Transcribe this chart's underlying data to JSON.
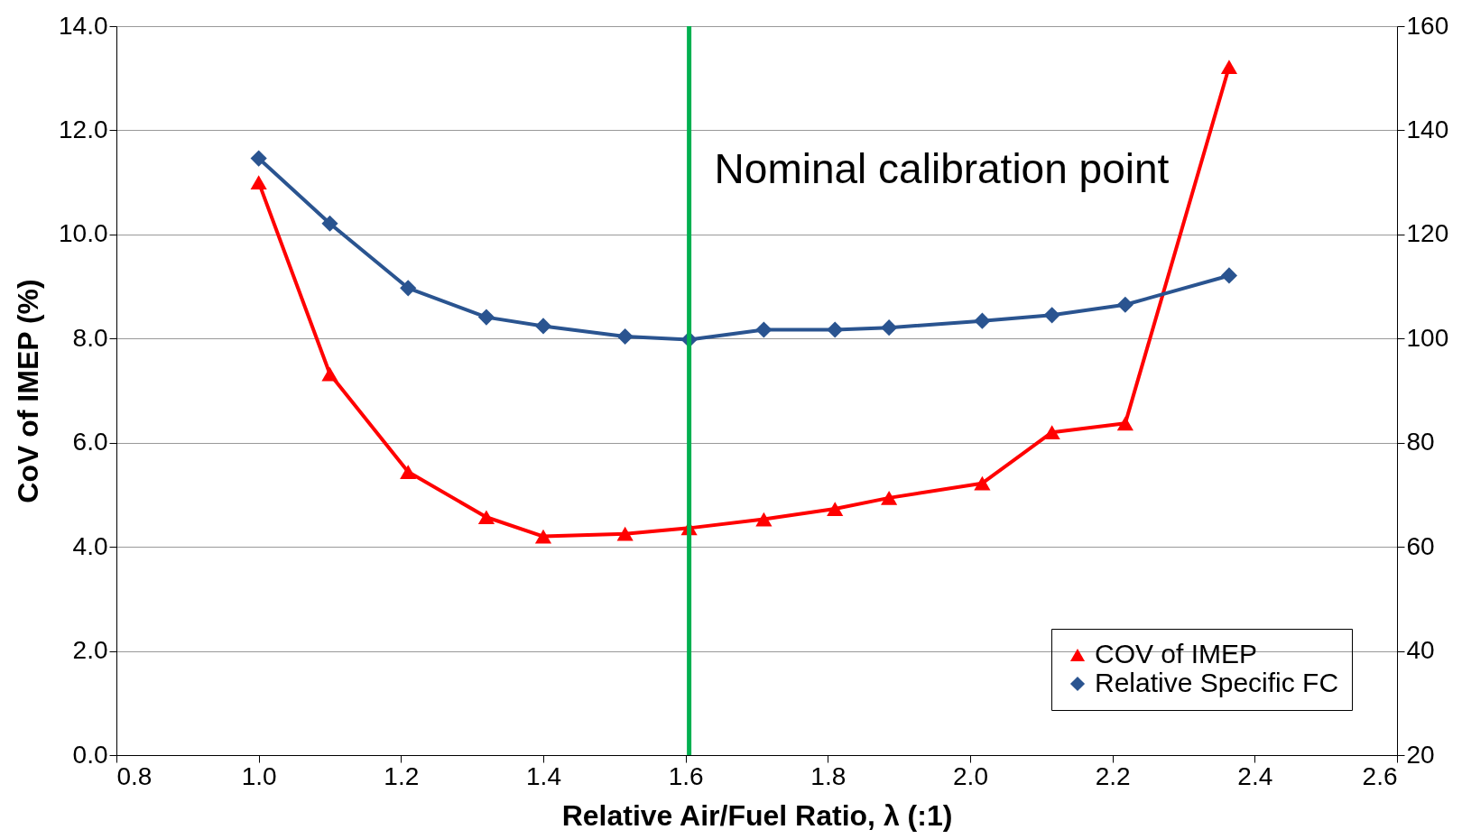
{
  "chart_data": {
    "type": "line",
    "xlabel": "Relative Air/Fuel Ratio, λ (:1)",
    "ylabel": "CoV of IMEP (%)",
    "x": [
      1.0,
      1.1,
      1.21,
      1.32,
      1.4,
      1.515,
      1.605,
      1.71,
      1.81,
      1.886,
      2.017,
      2.115,
      2.218,
      2.364
    ],
    "series": [
      {
        "name": "COV of IMEP",
        "color": "#ff0000",
        "marker": "triangle",
        "values": [
          11.0,
          7.32,
          5.44,
          4.57,
          4.2,
          4.25,
          4.36,
          4.53,
          4.73,
          4.94,
          5.22,
          6.2,
          6.37,
          13.22
        ]
      },
      {
        "name": "Relative Specific FC",
        "color": "#2a5490",
        "marker": "diamond",
        "axis": "y2",
        "values": [
          134.6,
          122.1,
          109.7,
          104.1,
          102.4,
          100.4,
          99.8,
          101.7,
          101.7,
          102.1,
          103.4,
          104.5,
          106.5,
          112.1
        ]
      }
    ],
    "xlim": [
      0.8,
      2.6
    ],
    "xticks": [
      0.8,
      {
        "value": 1.0,
        "label": "1.0"
      },
      1.2,
      1.4,
      1.6,
      1.8,
      {
        "value": 2.0,
        "label": "2.0"
      },
      2.2,
      2.4,
      2.6
    ],
    "ylim": [
      0,
      14
    ],
    "yticks": [
      {
        "value": 0,
        "label": "0.0"
      },
      {
        "value": 2,
        "label": "2.0"
      },
      {
        "value": 4,
        "label": "4.0"
      },
      {
        "value": 6,
        "label": "6.0"
      },
      {
        "value": 8,
        "label": "8.0"
      },
      {
        "value": 10,
        "label": "10.0"
      },
      {
        "value": 12,
        "label": "12.0"
      },
      {
        "value": 14,
        "label": "14.0"
      }
    ],
    "y2lim": [
      20,
      160
    ],
    "y2ticks": [
      20,
      40,
      60,
      80,
      100,
      120,
      140,
      160
    ],
    "ref_lines": [
      {
        "axis": "x",
        "value": 1.605,
        "label": "Nominal calibration point",
        "color": "#00b050"
      }
    ],
    "grid": "y",
    "legend": "bottom right",
    "line_style": "solid"
  }
}
